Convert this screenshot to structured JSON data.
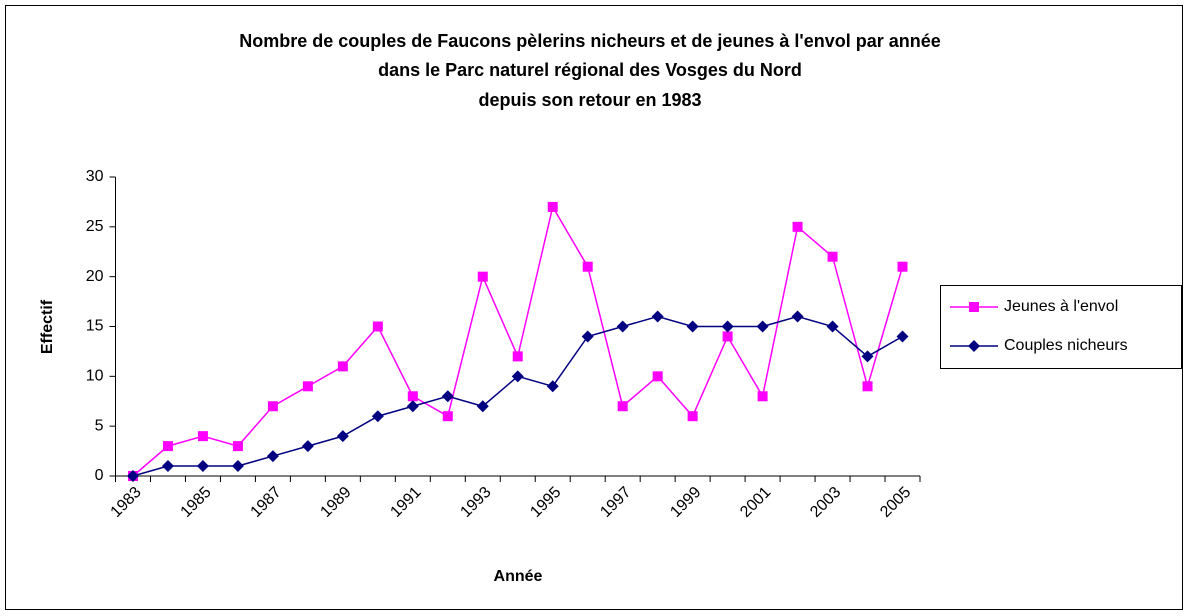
{
  "chart_data": {
    "type": "line",
    "title": [
      "Nombre de couples de Faucons pèlerins nicheurs et de jeunes à l'envol par année",
      "dans le Parc naturel régional des Vosges du Nord",
      "depuis son retour en 1983"
    ],
    "xlabel": "Année",
    "ylabel": "Effectif",
    "categories": [
      "1983",
      null,
      "1985",
      null,
      "1987",
      null,
      "1989",
      null,
      "1991",
      null,
      "1993",
      null,
      "1995",
      null,
      "1997",
      null,
      "1999",
      null,
      "2001",
      null,
      "2003",
      null,
      "2005"
    ],
    "series": [
      {
        "name": "Jeunes à l'envol",
        "color": "#ff00ff",
        "marker": "square",
        "values": [
          0,
          3,
          4,
          3,
          7,
          9,
          11,
          15,
          8,
          6,
          20,
          12,
          27,
          21,
          7,
          10,
          6,
          14,
          8,
          25,
          22,
          9,
          21
        ]
      },
      {
        "name": "Couples nicheurs",
        "color": "#000080",
        "marker": "diamond",
        "values": [
          0,
          1,
          1,
          1,
          2,
          3,
          4,
          6,
          7,
          8,
          7,
          10,
          9,
          14,
          15,
          16,
          15,
          15,
          15,
          16,
          15,
          12,
          14
        ]
      }
    ],
    "ylim": [
      0,
      30
    ],
    "yticks": [
      0,
      5,
      10,
      15,
      20,
      25,
      30
    ],
    "grid": false,
    "legend": "right"
  }
}
